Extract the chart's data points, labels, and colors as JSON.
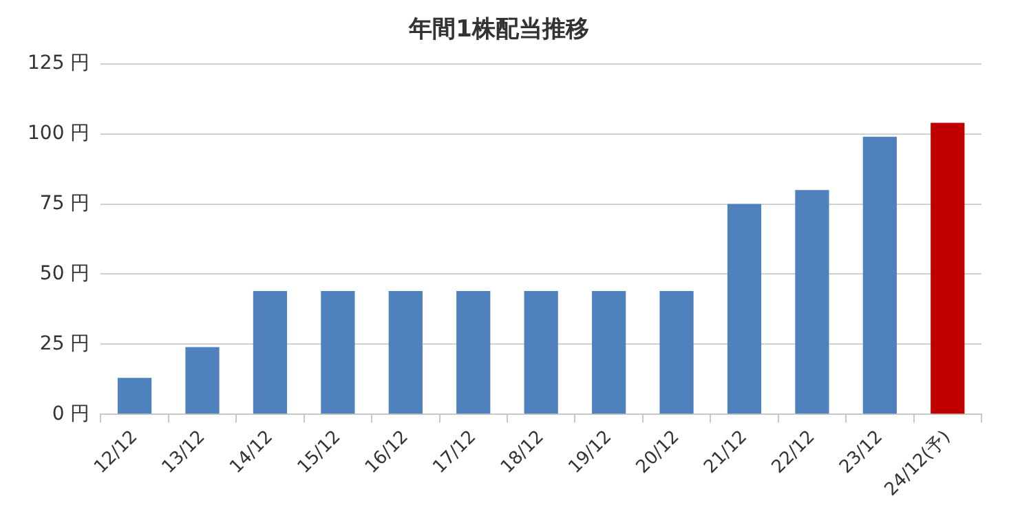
{
  "chart_data": {
    "type": "bar",
    "title": "年間1株配当推移",
    "categories": [
      "12/12",
      "13/12",
      "14/12",
      "15/12",
      "16/12",
      "17/12",
      "18/12",
      "19/12",
      "20/12",
      "21/12",
      "22/12",
      "23/12",
      "24/12(予)"
    ],
    "values": [
      13,
      24,
      44,
      44,
      44,
      44,
      44,
      44,
      44,
      75,
      80,
      99,
      104
    ],
    "colors": [
      "#4f81bd",
      "#4f81bd",
      "#4f81bd",
      "#4f81bd",
      "#4f81bd",
      "#4f81bd",
      "#4f81bd",
      "#4f81bd",
      "#4f81bd",
      "#4f81bd",
      "#4f81bd",
      "#4f81bd",
      "#c00000"
    ],
    "ylim": [
      0,
      125
    ],
    "yticks": [
      {
        "value": 0,
        "label": "0 円"
      },
      {
        "value": 25,
        "label": "25 円"
      },
      {
        "value": 50,
        "label": "50 円"
      },
      {
        "value": 75,
        "label": "75 円"
      },
      {
        "value": 100,
        "label": "100 円"
      },
      {
        "value": 125,
        "label": "125 円"
      }
    ],
    "grid": "y"
  }
}
